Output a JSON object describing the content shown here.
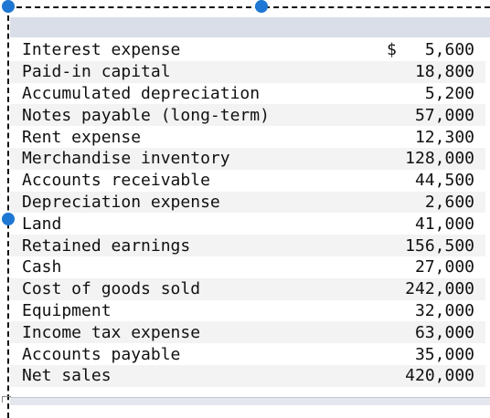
{
  "currency_symbol": "$",
  "accounts": [
    {
      "name": "Interest expense",
      "amount": "5,600"
    },
    {
      "name": "Paid-in capital",
      "amount": "18,800"
    },
    {
      "name": "Accumulated depreciation",
      "amount": "5,200"
    },
    {
      "name": "Notes payable (long-term)",
      "amount": "57,000"
    },
    {
      "name": "Rent expense",
      "amount": "12,300"
    },
    {
      "name": "Merchandise inventory",
      "amount": "128,000"
    },
    {
      "name": "Accounts receivable",
      "amount": "44,500"
    },
    {
      "name": "Depreciation expense",
      "amount": "2,600"
    },
    {
      "name": "Land",
      "amount": "41,000"
    },
    {
      "name": "Retained earnings",
      "amount": "156,500"
    },
    {
      "name": "Cash",
      "amount": "27,000"
    },
    {
      "name": "Cost of goods sold",
      "amount": "242,000"
    },
    {
      "name": "Equipment",
      "amount": "32,000"
    },
    {
      "name": "Income tax expense",
      "amount": "63,000"
    },
    {
      "name": "Accounts payable",
      "amount": "35,000"
    },
    {
      "name": "Net sales",
      "amount": "420,000"
    }
  ],
  "colors": {
    "selection_handle": "#1e77d3",
    "header_band": "#d9dee8",
    "row_stripe": "#f3f3f3"
  }
}
